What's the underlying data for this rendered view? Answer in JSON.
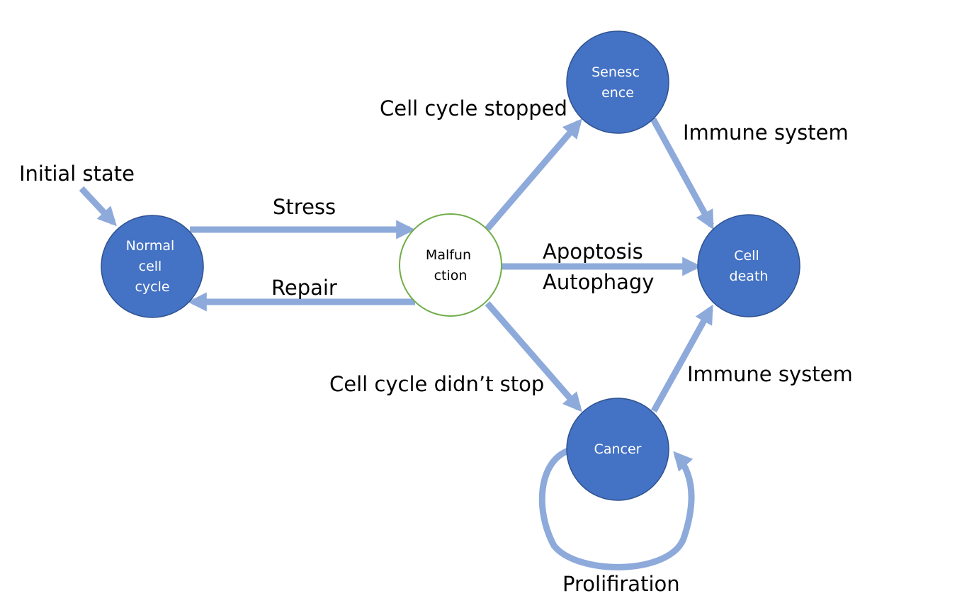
{
  "colors": {
    "node_fill": "#4472c4",
    "node_stroke": "#2f528f",
    "malfunction_stroke": "#70ad47",
    "arrow": "#8eaadb",
    "label_text": "#000000",
    "node_text": "#ffffff"
  },
  "nodes": {
    "normal": [
      "Normal",
      "cell",
      "cycle"
    ],
    "malfunction": [
      "Malfun",
      "ction"
    ],
    "senescence": [
      "Senesc",
      "ence"
    ],
    "cell_death": [
      "Cell",
      "death"
    ],
    "cancer": [
      "Cancer"
    ]
  },
  "edge_labels": {
    "initial_state": "Initial state",
    "stress": "Stress",
    "repair": "Repair",
    "cell_cycle_stopped": "Cell cycle stopped",
    "immune_system_top": "Immune system",
    "apoptosis": "Apoptosis",
    "autophagy": "Autophagy",
    "cell_cycle_didnt_stop": "Cell cycle didn’t stop",
    "immune_system_bottom": "Immune system",
    "proliferation": "Prolifiration"
  }
}
